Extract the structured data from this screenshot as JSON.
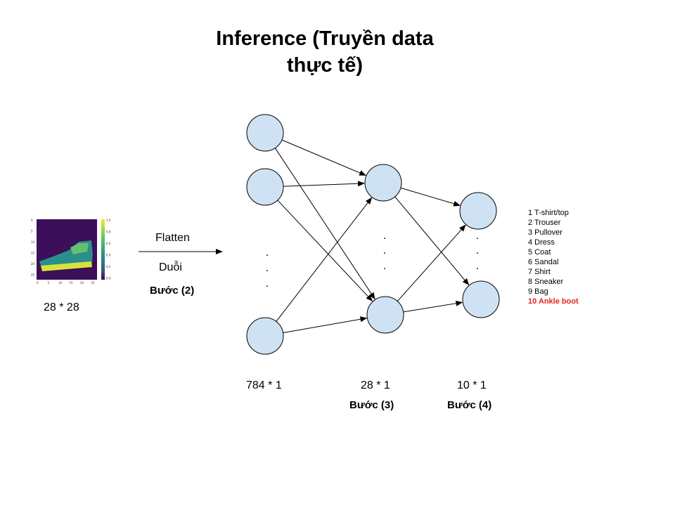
{
  "title_line1": "Inference (Truyền data",
  "title_line2": "thực tế)",
  "input": {
    "size_label": "28 * 28",
    "image_axis_y_ticks": [
      "0",
      "5",
      "10",
      "15",
      "20",
      "25"
    ],
    "image_axis_x_ticks": [
      "0",
      "5",
      "10",
      "15",
      "20",
      "25"
    ],
    "colorbar_ticks": [
      "1.0",
      "0.8",
      "0.6",
      "0.4",
      "0.2",
      "0.0"
    ]
  },
  "flatten": {
    "label_en": "Flatten",
    "label_vi": "Duỗi",
    "step": "Bước (2)"
  },
  "layers": [
    {
      "size": "784 * 1",
      "step": ""
    },
    {
      "size": "28 * 1",
      "step": "Bước (3)"
    },
    {
      "size": "10 * 1",
      "step": "Bước (4)"
    }
  ],
  "classes": [
    {
      "text": "1 T-shirt/top"
    },
    {
      "text": "2 Trouser"
    },
    {
      "text": "3 Pullover"
    },
    {
      "text": "4 Dress"
    },
    {
      "text": "5 Coat"
    },
    {
      "text": "6 Sandal"
    },
    {
      "text": "7 Shirt"
    },
    {
      "text": "8 Sneaker"
    },
    {
      "text": "9 Bag"
    },
    {
      "text": "10 Ankle boot",
      "highlight": true
    }
  ],
  "colors": {
    "node_fill": "#cfe2f3",
    "node_stroke": "#000000",
    "highlight": "#e8231f",
    "image_bg": "#3b0f5a",
    "image_boot": "#2a8f8a",
    "image_sole": "#d8e33a"
  },
  "ellipsis": "."
}
